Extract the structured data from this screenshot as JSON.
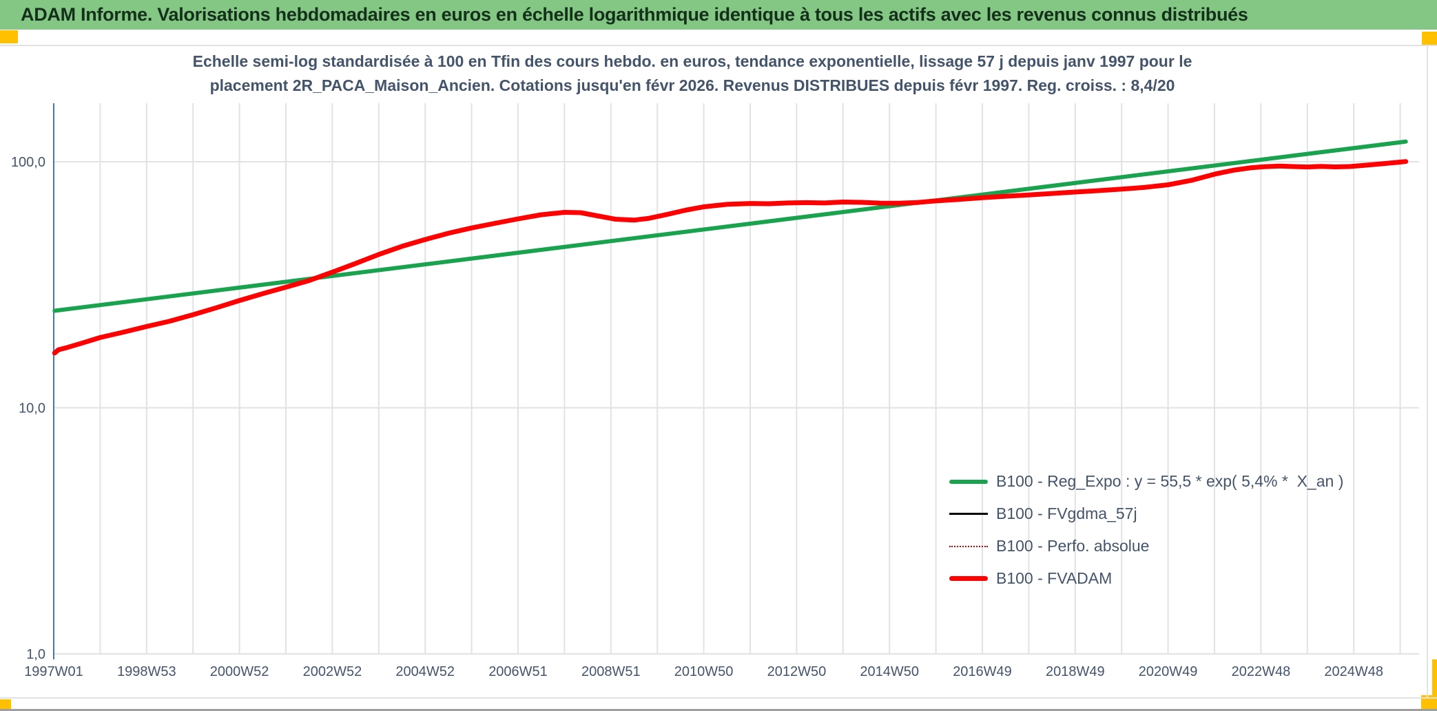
{
  "banner": {
    "title": "ADAM Informe. Valorisations hebdomadaires en euros en échelle logarithmique identique à tous les actifs avec les revenus connus distribués"
  },
  "chart": {
    "title_line1": "Echelle semi-log standardisée à 100 en Tfin des cours hebdo. en euros, tendance exponentielle, lissage 57 j depuis janv 1997 pour le",
    "title_line2": "placement 2R_PACA_Maison_Ancien. Cotations jusqu'en févr 2026. Revenus DISTRIBUES depuis févr 1997. Reg. croiss. : 8,4/20"
  },
  "legend": {
    "items": [
      {
        "label": "B100 - Reg_Expo : y = 55,5 * exp( 5,4% *  X_an )",
        "color": "#1aa34f",
        "style": "solid-thick-6"
      },
      {
        "label": "B100 - FVgdma_57j",
        "color": "#000000",
        "style": "solid-thin-3"
      },
      {
        "label": "B100 - Perfo. absolue",
        "color": "#c00000",
        "style": "dotted-2"
      },
      {
        "label": "B100 - FVADAM",
        "color": "#fe0000",
        "style": "solid-thick-7"
      }
    ]
  },
  "colors": {
    "banner_bg": "#84c784",
    "banner_text": "#14301a",
    "gold_accent": "#FFC000",
    "title_text": "#44546A",
    "axis_label_text": "#44546A",
    "y_axis_line": "#4472c4",
    "gridline": "#e2e2e2",
    "green_line": "#1aa34f",
    "red_line": "#fe0000",
    "dark_red_dotted": "#c00000",
    "black_line": "#000000"
  },
  "chart_data": {
    "type": "line",
    "title": "Echelle semi-log standardisée à 100 en Tfin des cours hebdo. en euros, tendance exponentielle, lissage 57 j depuis janv 1997 pour le placement 2R_PACA_Maison_Ancien. Cotations jusqu'en févr 2026. Revenus DISTRIBUES depuis févr 1997. Reg. croiss. : 8,4/20",
    "x_axis": {
      "tick_labels": [
        "1997W01",
        "1998W53",
        "2000W52",
        "2002W52",
        "2004W52",
        "2006W51",
        "2008W51",
        "2010W50",
        "2012W50",
        "2014W50",
        "2016W49",
        "2018W49",
        "2020W49",
        "2022W48",
        "2024W48"
      ],
      "tick_interval_years": 2,
      "range_years": [
        1997.0,
        2026.3
      ],
      "gridlines_every_years": 1
    },
    "y_axis": {
      "scale": "log10",
      "tick_labels": [
        "100,0",
        "10,0",
        "1,0"
      ],
      "tick_values": [
        100,
        10,
        1
      ],
      "range": [
        1,
        167
      ]
    },
    "legend_position": "inside-right-lower",
    "series": [
      {
        "name": "B100 - Reg_Expo",
        "formula": "y = 55,5 * exp( 5,4% *  X_an )",
        "color": "#1aa34f",
        "width": 6,
        "style": "solid",
        "points": [
          [
            1997.02,
            24.8
          ],
          [
            2026.12,
            120.8
          ]
        ]
      },
      {
        "name": "B100 - FVgdma_57j",
        "color": "#000000",
        "width": 2.5,
        "style": "solid",
        "coincides_with": "B100 - FVADAM"
      },
      {
        "name": "B100 - Perfo. absolue",
        "color": "#c00000",
        "width": 2,
        "style": "dotted",
        "coincides_with": "B100 - FVADAM"
      },
      {
        "name": "B100 - FVADAM",
        "color": "#fe0000",
        "width": 7,
        "style": "solid",
        "points": [
          [
            1997.02,
            16.7
          ],
          [
            1997.1,
            17.2
          ],
          [
            1997.3,
            17.6
          ],
          [
            1997.6,
            18.3
          ],
          [
            1998.0,
            19.3
          ],
          [
            1998.5,
            20.3
          ],
          [
            1999.0,
            21.4
          ],
          [
            1999.5,
            22.5
          ],
          [
            2000.0,
            23.9
          ],
          [
            2000.5,
            25.5
          ],
          [
            2001.0,
            27.3
          ],
          [
            2001.5,
            29.1
          ],
          [
            2002.0,
            30.9
          ],
          [
            2002.5,
            32.9
          ],
          [
            2003.0,
            35.6
          ],
          [
            2003.5,
            38.6
          ],
          [
            2004.0,
            42.0
          ],
          [
            2004.5,
            45.3
          ],
          [
            2005.0,
            48.3
          ],
          [
            2005.5,
            51.2
          ],
          [
            2006.0,
            53.8
          ],
          [
            2006.5,
            56.2
          ],
          [
            2007.0,
            58.6
          ],
          [
            2007.5,
            60.9
          ],
          [
            2008.0,
            62.3
          ],
          [
            2008.35,
            62.1
          ],
          [
            2008.7,
            60.3
          ],
          [
            2009.1,
            58.4
          ],
          [
            2009.5,
            57.9
          ],
          [
            2009.8,
            58.8
          ],
          [
            2010.2,
            61.0
          ],
          [
            2010.6,
            63.5
          ],
          [
            2011.0,
            65.6
          ],
          [
            2011.5,
            67.1
          ],
          [
            2012.0,
            67.7
          ],
          [
            2012.4,
            67.5
          ],
          [
            2012.8,
            68.0
          ],
          [
            2013.2,
            68.2
          ],
          [
            2013.6,
            68.0
          ],
          [
            2014.0,
            68.6
          ],
          [
            2014.4,
            68.4
          ],
          [
            2014.8,
            67.9
          ],
          [
            2015.2,
            67.8
          ],
          [
            2015.6,
            68.3
          ],
          [
            2016.0,
            69.3
          ],
          [
            2016.5,
            70.3
          ],
          [
            2017.0,
            71.4
          ],
          [
            2017.5,
            72.4
          ],
          [
            2018.0,
            73.3
          ],
          [
            2018.5,
            74.3
          ],
          [
            2019.0,
            75.3
          ],
          [
            2019.5,
            76.3
          ],
          [
            2020.0,
            77.4
          ],
          [
            2020.5,
            78.7
          ],
          [
            2021.0,
            80.6
          ],
          [
            2021.5,
            84.0
          ],
          [
            2022.0,
            89.0
          ],
          [
            2022.4,
            92.3
          ],
          [
            2022.8,
            94.6
          ],
          [
            2023.1,
            95.5
          ],
          [
            2023.4,
            96.0
          ],
          [
            2023.7,
            95.6
          ],
          [
            2024.0,
            95.2
          ],
          [
            2024.3,
            95.7
          ],
          [
            2024.6,
            95.3
          ],
          [
            2024.9,
            95.6
          ],
          [
            2025.2,
            96.6
          ],
          [
            2025.6,
            98.1
          ],
          [
            2025.9,
            99.3
          ],
          [
            2026.12,
            100.2
          ]
        ]
      }
    ]
  }
}
